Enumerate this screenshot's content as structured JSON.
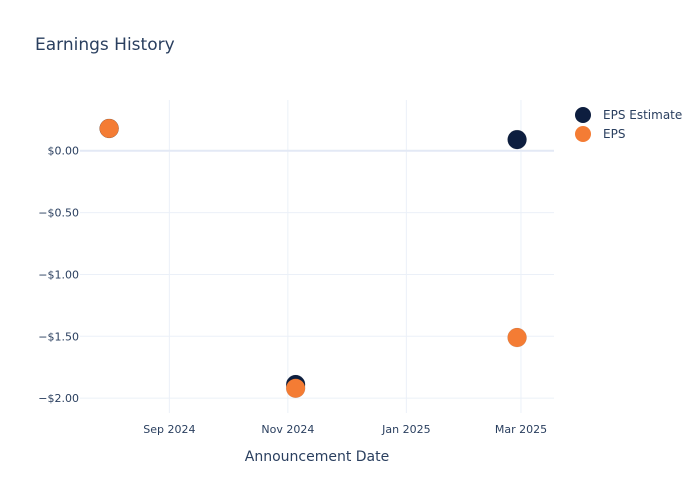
{
  "chart_data": {
    "type": "scatter",
    "title": "Earnings History",
    "xlabel": "Announcement Date",
    "ylabel": "",
    "x_ticks": [
      {
        "label": "Sep 2024",
        "date": "2024-09-01"
      },
      {
        "label": "Nov 2024",
        "date": "2024-11-01"
      },
      {
        "label": "Jan 2025",
        "date": "2025-01-01"
      },
      {
        "label": "Mar 2025",
        "date": "2025-03-01"
      }
    ],
    "y_ticks": [
      {
        "label": "$0.00",
        "value": 0
      },
      {
        "label": "−$0.50",
        "value": -0.5
      },
      {
        "label": "−$1.00",
        "value": -1.0
      },
      {
        "label": "−$1.50",
        "value": -1.5
      },
      {
        "label": "−$2.00",
        "value": -2.0
      }
    ],
    "xlim": [
      "2024-07-17",
      "2025-03-18"
    ],
    "ylim": [
      -2.12,
      0.41
    ],
    "grid": true,
    "legend_position": "top-right",
    "series": [
      {
        "name": "EPS Estimate",
        "color": "#0d1e3f",
        "points": [
          {
            "date": "2024-08-01",
            "value": 0.18
          },
          {
            "date": "2024-11-05",
            "value": -1.89
          },
          {
            "date": "2025-02-27",
            "value": 0.09
          }
        ]
      },
      {
        "name": "EPS",
        "color": "#f47c34",
        "points": [
          {
            "date": "2024-08-01",
            "value": 0.18
          },
          {
            "date": "2024-11-05",
            "value": -1.92
          },
          {
            "date": "2025-02-27",
            "value": -1.51
          }
        ]
      }
    ]
  }
}
